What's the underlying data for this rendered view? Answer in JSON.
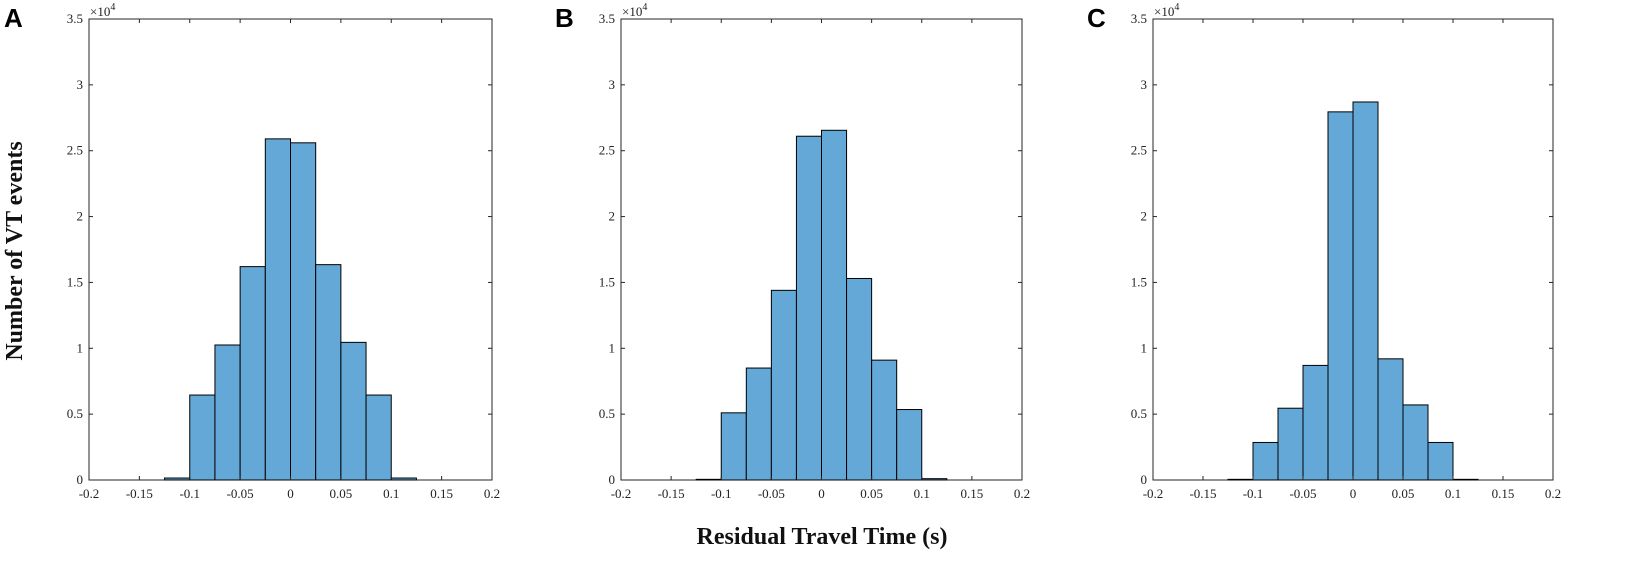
{
  "figure": {
    "ylabel": "Number of VT events",
    "xlabel": "Residual Travel Time (s)",
    "bar_color": "#64a8d7",
    "edge_color": "#000000"
  },
  "chart_data": [
    {
      "type": "bar",
      "panel": "A",
      "y_multiplier_label": "×10",
      "y_multiplier_exponent": "4",
      "xlim": [
        -0.2,
        0.2
      ],
      "ylim": [
        0,
        35000
      ],
      "x_ticks": [
        "-0.2",
        "-0.15",
        "-0.1",
        "-0.05",
        "0",
        "0.05",
        "0.1",
        "0.15",
        "0.2"
      ],
      "y_ticks": [
        "0",
        "0.5",
        "1",
        "1.5",
        "2",
        "2.5",
        "3",
        "3.5"
      ],
      "bin_edges": [
        -0.125,
        -0.1,
        -0.075,
        -0.05,
        -0.025,
        0,
        0.025,
        0.05,
        0.075,
        0.1,
        0.125
      ],
      "values": [
        150,
        6450,
        10250,
        16200,
        25900,
        25600,
        16350,
        10450,
        6450,
        150
      ]
    },
    {
      "type": "bar",
      "panel": "B",
      "y_multiplier_label": "×10",
      "y_multiplier_exponent": "4",
      "xlim": [
        -0.2,
        0.2
      ],
      "ylim": [
        0,
        35000
      ],
      "x_ticks": [
        "-0.2",
        "-0.15",
        "-0.1",
        "-0.05",
        "0",
        "0.05",
        "0.1",
        "0.15",
        "0.2"
      ],
      "y_ticks": [
        "0",
        "0.5",
        "1",
        "1.5",
        "2",
        "2.5",
        "3",
        "3.5"
      ],
      "bin_edges": [
        -0.125,
        -0.1,
        -0.075,
        -0.05,
        -0.025,
        0,
        0.025,
        0.05,
        0.075,
        0.1,
        0.125
      ],
      "values": [
        50,
        5100,
        8500,
        14400,
        26100,
        26550,
        15300,
        9100,
        5350,
        100
      ]
    },
    {
      "type": "bar",
      "panel": "C",
      "y_multiplier_label": "×10",
      "y_multiplier_exponent": "4",
      "xlim": [
        -0.2,
        0.2
      ],
      "ylim": [
        0,
        35000
      ],
      "x_ticks": [
        "-0.2",
        "-0.15",
        "-0.1",
        "-0.05",
        "0",
        "0.05",
        "0.1",
        "0.15",
        "0.2"
      ],
      "y_ticks": [
        "0",
        "0.5",
        "1",
        "1.5",
        "2",
        "2.5",
        "3",
        "3.5"
      ],
      "bin_edges": [
        -0.125,
        -0.1,
        -0.075,
        -0.05,
        -0.025,
        0,
        0.025,
        0.05,
        0.075,
        0.1,
        0.125
      ],
      "values": [
        50,
        2850,
        5450,
        8700,
        27950,
        28700,
        9200,
        5700,
        2850,
        50
      ]
    }
  ]
}
